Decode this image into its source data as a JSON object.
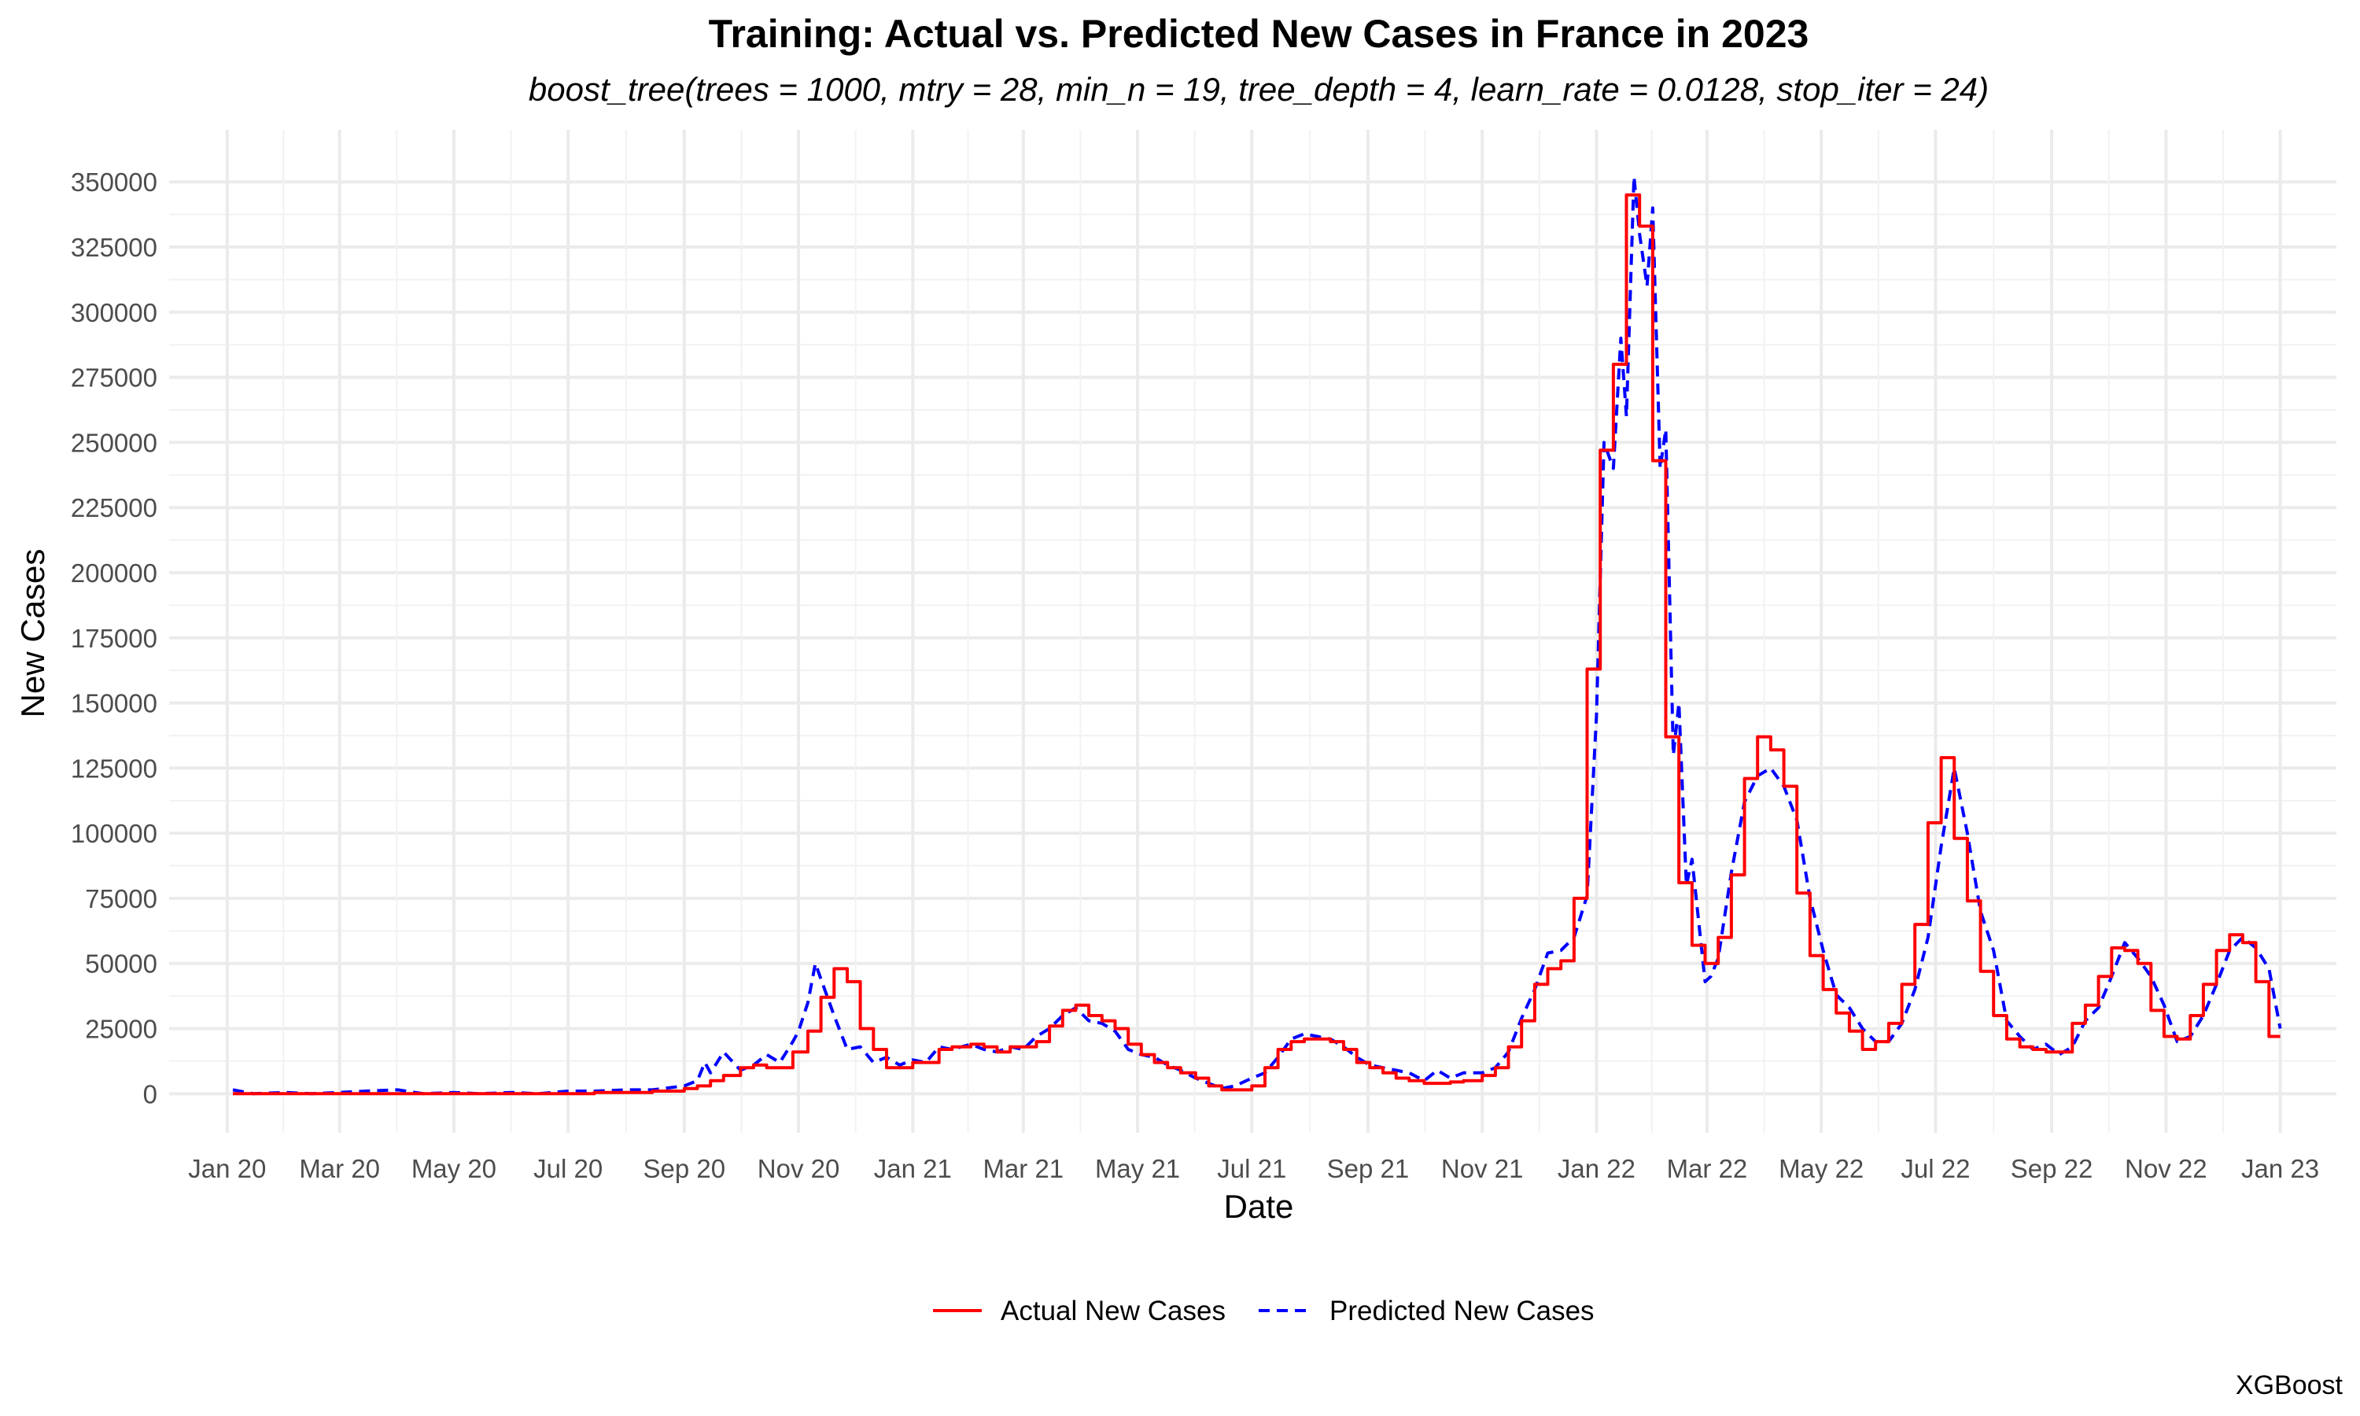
{
  "chart_data": {
    "type": "line",
    "title": "Training: Actual vs. Predicted New Cases in France in 2023",
    "subtitle": "boost_tree(trees = 1000, mtry = 28, min_n = 19, tree_depth = 4, learn_rate = 0.0128, stop_iter = 24)",
    "xlabel": "Date",
    "ylabel": "New Cases",
    "caption": "XGBoost",
    "xlim": [
      "2019-12-01",
      "2023-01-31"
    ],
    "ylim": [
      -15000,
      370000
    ],
    "grid": true,
    "legend_position": "bottom",
    "x_ticks": [
      {
        "date": "2020-01-01",
        "label": "Jan 20"
      },
      {
        "date": "2020-03-01",
        "label": "Mar 20"
      },
      {
        "date": "2020-05-01",
        "label": "May 20"
      },
      {
        "date": "2020-07-01",
        "label": "Jul 20"
      },
      {
        "date": "2020-09-01",
        "label": "Sep 20"
      },
      {
        "date": "2020-11-01",
        "label": "Nov 20"
      },
      {
        "date": "2021-01-01",
        "label": "Jan 21"
      },
      {
        "date": "2021-03-01",
        "label": "Mar 21"
      },
      {
        "date": "2021-05-01",
        "label": "May 21"
      },
      {
        "date": "2021-07-01",
        "label": "Jul 21"
      },
      {
        "date": "2021-09-01",
        "label": "Sep 21"
      },
      {
        "date": "2021-11-01",
        "label": "Nov 21"
      },
      {
        "date": "2022-01-01",
        "label": "Jan 22"
      },
      {
        "date": "2022-03-01",
        "label": "Mar 22"
      },
      {
        "date": "2022-05-01",
        "label": "May 22"
      },
      {
        "date": "2022-07-01",
        "label": "Jul 22"
      },
      {
        "date": "2022-09-01",
        "label": "Sep 22"
      },
      {
        "date": "2022-11-01",
        "label": "Nov 22"
      },
      {
        "date": "2023-01-01",
        "label": "Jan 23"
      }
    ],
    "y_ticks": [
      0,
      25000,
      50000,
      75000,
      100000,
      125000,
      150000,
      175000,
      200000,
      225000,
      250000,
      275000,
      300000,
      325000,
      350000
    ],
    "series": [
      {
        "name": "Actual New Cases",
        "color": "#ff0000",
        "line_style": "solid",
        "step": true,
        "x": [
          "2020-01-04",
          "2020-02-01",
          "2020-03-01",
          "2020-04-01",
          "2020-05-01",
          "2020-06-01",
          "2020-07-01",
          "2020-07-15",
          "2020-08-01",
          "2020-08-15",
          "2020-09-01",
          "2020-09-08",
          "2020-09-15",
          "2020-09-22",
          "2020-10-01",
          "2020-10-08",
          "2020-10-15",
          "2020-10-22",
          "2020-10-29",
          "2020-11-06",
          "2020-11-13",
          "2020-11-20",
          "2020-11-27",
          "2020-12-04",
          "2020-12-11",
          "2020-12-18",
          "2020-12-25",
          "2021-01-01",
          "2021-01-08",
          "2021-01-15",
          "2021-01-22",
          "2021-02-01",
          "2021-02-08",
          "2021-02-15",
          "2021-02-22",
          "2021-03-01",
          "2021-03-08",
          "2021-03-15",
          "2021-03-22",
          "2021-03-29",
          "2021-04-05",
          "2021-04-12",
          "2021-04-19",
          "2021-04-26",
          "2021-05-03",
          "2021-05-10",
          "2021-05-17",
          "2021-05-24",
          "2021-06-01",
          "2021-06-08",
          "2021-06-15",
          "2021-06-22",
          "2021-07-01",
          "2021-07-08",
          "2021-07-15",
          "2021-07-22",
          "2021-07-29",
          "2021-08-05",
          "2021-08-12",
          "2021-08-19",
          "2021-08-26",
          "2021-09-02",
          "2021-09-09",
          "2021-09-16",
          "2021-09-23",
          "2021-10-01",
          "2021-10-08",
          "2021-10-15",
          "2021-10-22",
          "2021-11-01",
          "2021-11-08",
          "2021-11-15",
          "2021-11-22",
          "2021-11-29",
          "2021-12-06",
          "2021-12-13",
          "2021-12-20",
          "2021-12-27",
          "2022-01-03",
          "2022-01-10",
          "2022-01-17",
          "2022-01-24",
          "2022-01-31",
          "2022-02-07",
          "2022-02-14",
          "2022-02-21",
          "2022-02-28",
          "2022-03-07",
          "2022-03-14",
          "2022-03-21",
          "2022-03-28",
          "2022-04-04",
          "2022-04-11",
          "2022-04-18",
          "2022-04-25",
          "2022-05-02",
          "2022-05-09",
          "2022-05-16",
          "2022-05-23",
          "2022-05-30",
          "2022-06-06",
          "2022-06-13",
          "2022-06-20",
          "2022-06-27",
          "2022-07-04",
          "2022-07-11",
          "2022-07-18",
          "2022-07-25",
          "2022-08-01",
          "2022-08-08",
          "2022-08-15",
          "2022-08-22",
          "2022-08-29",
          "2022-09-05",
          "2022-09-12",
          "2022-09-19",
          "2022-09-26",
          "2022-10-03",
          "2022-10-10",
          "2022-10-17",
          "2022-10-24",
          "2022-10-31",
          "2022-11-07",
          "2022-11-14",
          "2022-11-21",
          "2022-11-28",
          "2022-12-05",
          "2022-12-12",
          "2022-12-19",
          "2022-12-26",
          "2023-01-01"
        ],
        "y": [
          0,
          0,
          0,
          0,
          0,
          0,
          0,
          500,
          500,
          1000,
          2000,
          3000,
          5000,
          7000,
          10000,
          11000,
          10000,
          10000,
          16000,
          24000,
          37000,
          48000,
          43000,
          25000,
          17000,
          10000,
          10000,
          12000,
          12000,
          17000,
          18000,
          19000,
          18000,
          16000,
          18000,
          18000,
          20000,
          26000,
          32000,
          34000,
          30000,
          28000,
          25000,
          19000,
          15000,
          12000,
          10000,
          8000,
          6000,
          3000,
          1500,
          1500,
          3000,
          10000,
          17000,
          20000,
          21000,
          21000,
          20000,
          17000,
          12000,
          10000,
          8000,
          6000,
          5000,
          4000,
          4000,
          4500,
          5000,
          7000,
          10000,
          18000,
          28000,
          42000,
          48000,
          51000,
          75000,
          163000,
          247000,
          280000,
          345000,
          333000,
          243000,
          137000,
          81000,
          57000,
          50000,
          60000,
          84000,
          121000,
          137000,
          132000,
          118000,
          77000,
          53000,
          40000,
          31000,
          24000,
          17000,
          20000,
          27000,
          42000,
          65000,
          104000,
          129000,
          98000,
          74000,
          47000,
          30000,
          21000,
          18000,
          17000,
          16000,
          16000,
          27000,
          34000,
          45000,
          56000,
          55000,
          50000,
          32000,
          22000,
          21000,
          30000,
          42000,
          55000,
          61000,
          58000,
          43000,
          22000,
          22000
        ]
      },
      {
        "name": "Predicted New Cases",
        "color": "#0000ff",
        "line_style": "dashed",
        "x": [
          "2020-01-04",
          "2020-01-15",
          "2020-02-01",
          "2020-02-15",
          "2020-03-01",
          "2020-03-15",
          "2020-04-01",
          "2020-04-15",
          "2020-05-01",
          "2020-05-15",
          "2020-06-01",
          "2020-06-15",
          "2020-07-01",
          "2020-07-15",
          "2020-08-01",
          "2020-08-15",
          "2020-09-01",
          "2020-09-08",
          "2020-09-12",
          "2020-09-15",
          "2020-09-22",
          "2020-10-01",
          "2020-10-08",
          "2020-10-15",
          "2020-10-22",
          "2020-10-29",
          "2020-11-01",
          "2020-11-06",
          "2020-11-10",
          "2020-11-13",
          "2020-11-20",
          "2020-11-27",
          "2020-12-04",
          "2020-12-11",
          "2020-12-18",
          "2020-12-25",
          "2021-01-01",
          "2021-01-08",
          "2021-01-15",
          "2021-01-22",
          "2021-02-01",
          "2021-02-08",
          "2021-02-15",
          "2021-02-22",
          "2021-03-01",
          "2021-03-08",
          "2021-03-15",
          "2021-03-22",
          "2021-03-29",
          "2021-04-05",
          "2021-04-12",
          "2021-04-19",
          "2021-04-26",
          "2021-05-03",
          "2021-05-10",
          "2021-05-17",
          "2021-05-24",
          "2021-06-01",
          "2021-06-08",
          "2021-06-15",
          "2021-06-22",
          "2021-07-01",
          "2021-07-08",
          "2021-07-15",
          "2021-07-22",
          "2021-07-29",
          "2021-08-05",
          "2021-08-12",
          "2021-08-19",
          "2021-08-26",
          "2021-09-02",
          "2021-09-09",
          "2021-09-16",
          "2021-09-23",
          "2021-10-01",
          "2021-10-08",
          "2021-10-15",
          "2021-10-22",
          "2021-11-01",
          "2021-11-08",
          "2021-11-15",
          "2021-11-22",
          "2021-11-29",
          "2021-12-06",
          "2021-12-13",
          "2021-12-20",
          "2021-12-27",
          "2022-01-01",
          "2022-01-05",
          "2022-01-10",
          "2022-01-14",
          "2022-01-17",
          "2022-01-21",
          "2022-01-24",
          "2022-01-28",
          "2022-01-31",
          "2022-02-04",
          "2022-02-07",
          "2022-02-11",
          "2022-02-14",
          "2022-02-18",
          "2022-02-21",
          "2022-02-28",
          "2022-03-03",
          "2022-03-07",
          "2022-03-14",
          "2022-03-21",
          "2022-03-28",
          "2022-04-04",
          "2022-04-11",
          "2022-04-18",
          "2022-04-25",
          "2022-05-02",
          "2022-05-09",
          "2022-05-16",
          "2022-05-23",
          "2022-05-30",
          "2022-06-06",
          "2022-06-13",
          "2022-06-20",
          "2022-06-27",
          "2022-07-04",
          "2022-07-11",
          "2022-07-18",
          "2022-07-25",
          "2022-08-01",
          "2022-08-08",
          "2022-08-15",
          "2022-08-22",
          "2022-08-29",
          "2022-09-05",
          "2022-09-12",
          "2022-09-19",
          "2022-09-26",
          "2022-10-03",
          "2022-10-10",
          "2022-10-17",
          "2022-10-24",
          "2022-10-31",
          "2022-11-07",
          "2022-11-14",
          "2022-11-21",
          "2022-11-28",
          "2022-12-05",
          "2022-12-12",
          "2022-12-19",
          "2022-12-26",
          "2023-01-01"
        ],
        "y": [
          1500,
          0,
          500,
          0,
          500,
          1000,
          1500,
          0,
          500,
          0,
          500,
          0,
          1000,
          1000,
          1500,
          1500,
          3000,
          5000,
          12000,
          8000,
          16000,
          9000,
          11000,
          15000,
          12000,
          20000,
          24000,
          35000,
          50000,
          44000,
          30000,
          17000,
          18000,
          12000,
          14000,
          11000,
          13000,
          12000,
          18000,
          17000,
          19000,
          17000,
          16000,
          18000,
          17000,
          22000,
          25000,
          30000,
          33000,
          28000,
          27000,
          24000,
          17000,
          15000,
          14000,
          11000,
          9000,
          6000,
          4000,
          2000,
          3000,
          6000,
          8000,
          14000,
          21000,
          23000,
          22000,
          21000,
          18000,
          14000,
          11000,
          10000,
          9000,
          8000,
          5000,
          9000,
          6000,
          8000,
          8000,
          10000,
          16000,
          29000,
          40000,
          54000,
          55000,
          60000,
          76000,
          145000,
          250000,
          240000,
          290000,
          260000,
          352000,
          330000,
          310000,
          340000,
          240000,
          255000,
          130000,
          150000,
          80000,
          90000,
          43000,
          45000,
          52000,
          85000,
          112000,
          122000,
          125000,
          118000,
          105000,
          75000,
          55000,
          38000,
          33000,
          25000,
          20000,
          20000,
          27000,
          40000,
          60000,
          95000,
          125000,
          100000,
          70000,
          55000,
          28000,
          22000,
          17000,
          19000,
          15000,
          18000,
          28000,
          33000,
          45000,
          58000,
          52000,
          45000,
          34000,
          20000,
          22000,
          30000,
          42000,
          55000,
          60000,
          56000,
          48000,
          25000
        ]
      }
    ]
  }
}
